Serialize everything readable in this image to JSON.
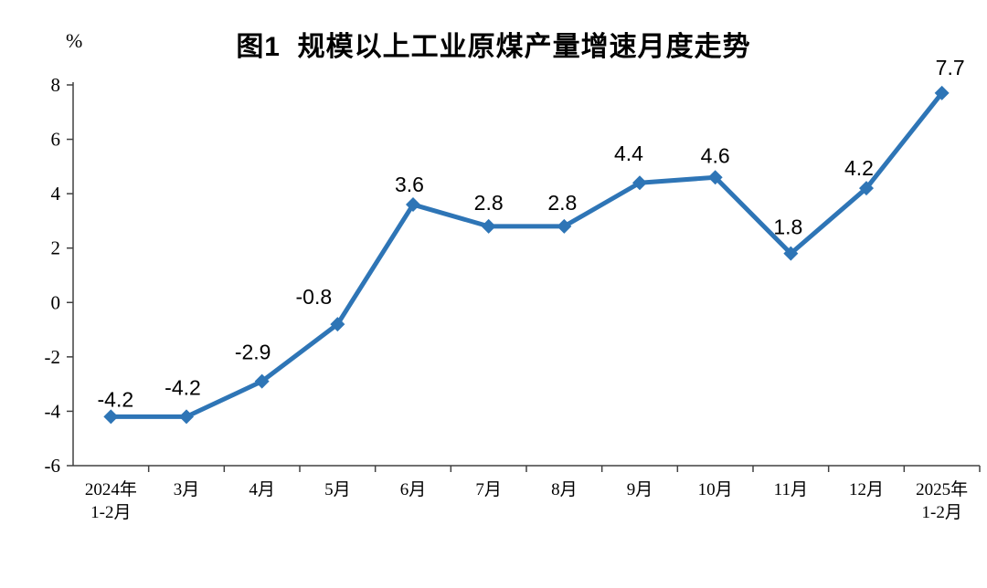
{
  "chart_data": {
    "type": "line",
    "title": "图1  规模以上工业原煤产量增速月度走势",
    "ylabel": "%",
    "xlabel": "",
    "categories": [
      "2024年\n1-2月",
      "3月",
      "4月",
      "5月",
      "6月",
      "7月",
      "8月",
      "9月",
      "10月",
      "11月",
      "12月",
      "2025年\n1-2月"
    ],
    "values": [
      -4.2,
      -4.2,
      -2.9,
      -0.8,
      3.6,
      2.8,
      2.8,
      4.4,
      4.6,
      1.8,
      4.2,
      7.7
    ],
    "labels": [
      "-4.2",
      "-4.2",
      "-2.9",
      "-0.8",
      "3.6",
      "2.8",
      "2.8",
      "4.4",
      "4.6",
      "1.8",
      "4.2",
      "7.7"
    ],
    "ylim": [
      -6,
      8
    ],
    "yticks": [
      8,
      6,
      4,
      2,
      0,
      -2,
      -4,
      -6
    ],
    "grid": false,
    "legend_position": "none",
    "marker": "diamond",
    "line_color": "#2E75B6",
    "axis_color": "#404040",
    "label_color": "#000000"
  }
}
